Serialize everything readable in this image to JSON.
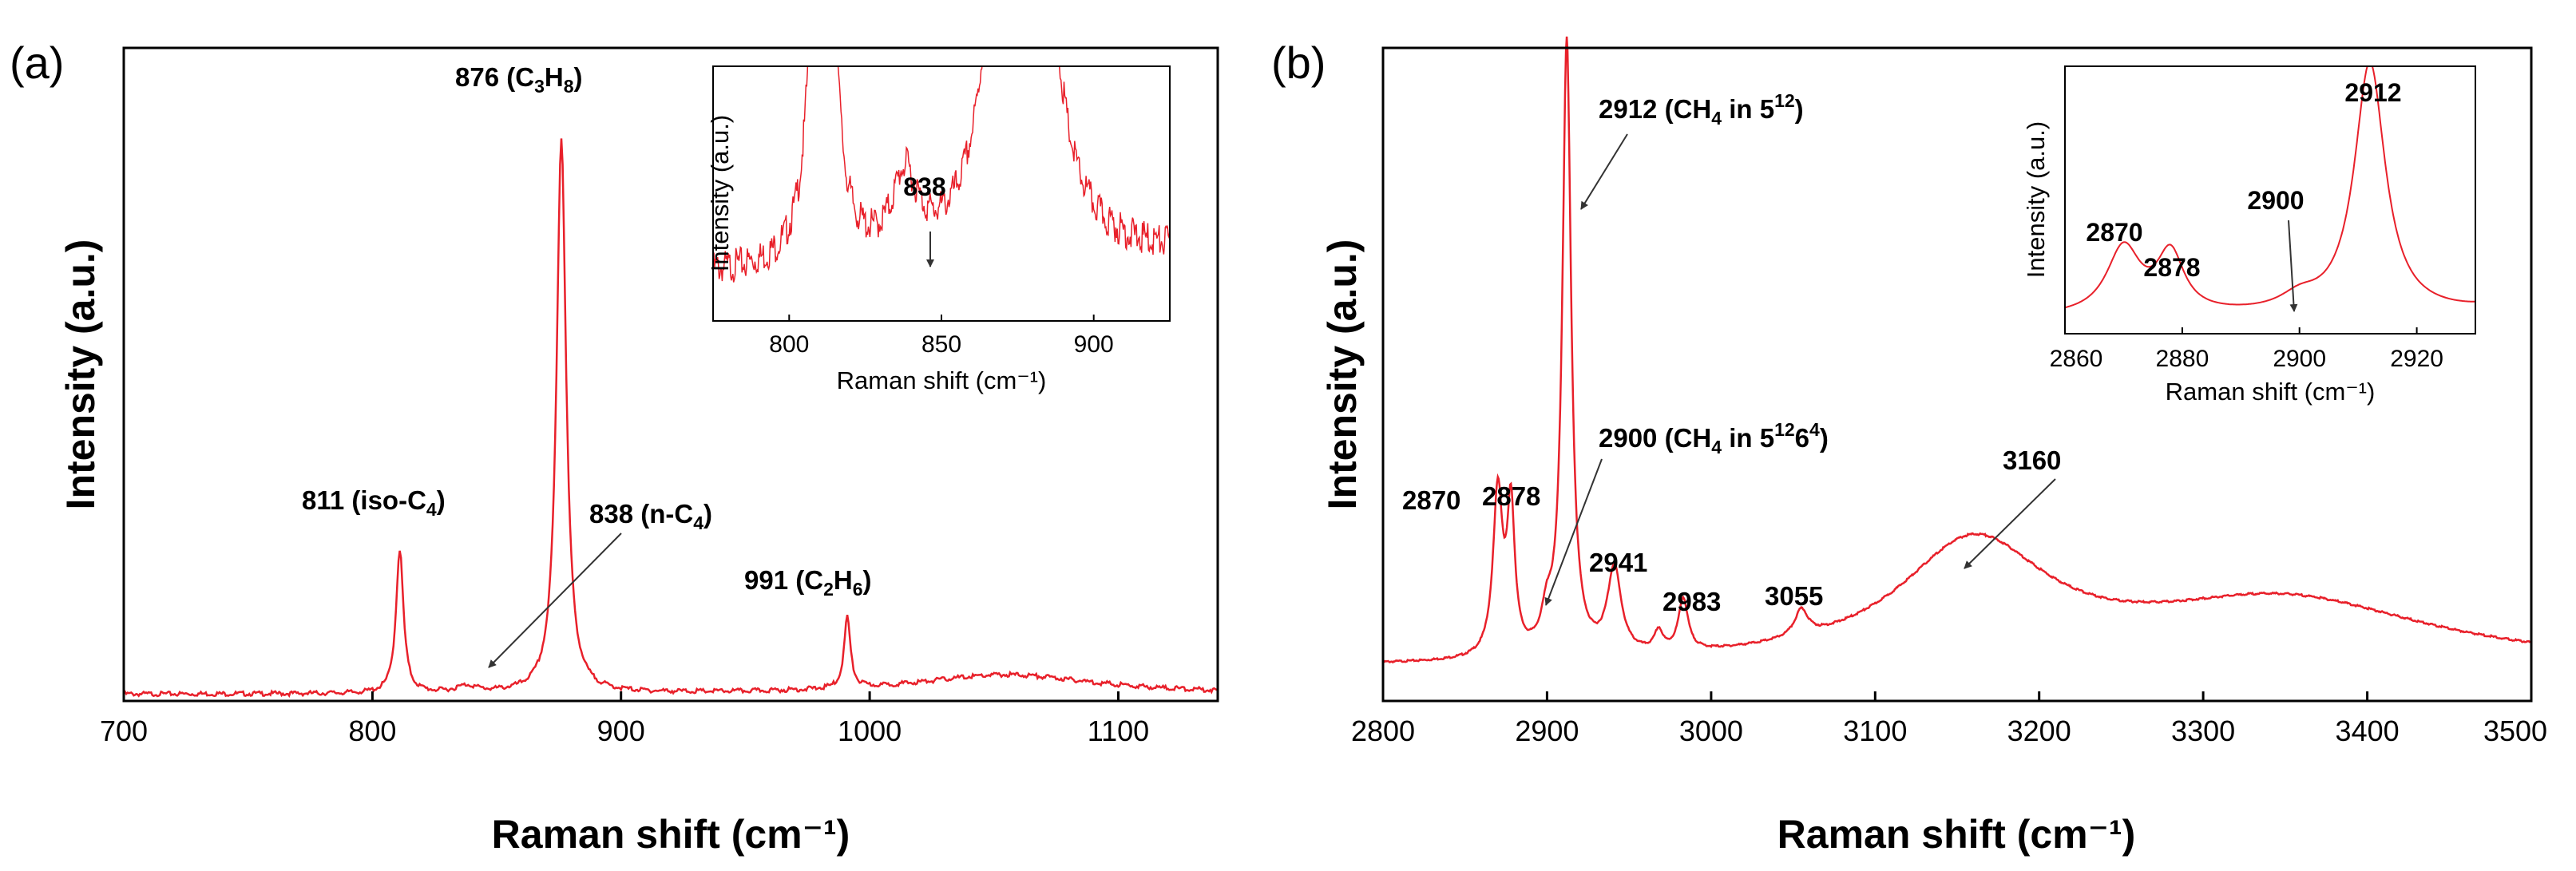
{
  "colors": {
    "spectrum": "#e8202a",
    "axis": "#000000",
    "arrow": "#333333"
  },
  "chart_data": [
    {
      "id": "a",
      "type": "line",
      "panel_label": "(a)",
      "xlabel": "Raman shift (cm⁻¹)",
      "ylabel": "Intensity (a.u.)",
      "xlim": [
        700,
        1140
      ],
      "ylim": [
        0,
        100
      ],
      "xticks": [
        700,
        800,
        900,
        1000,
        1100
      ],
      "baseline": 1,
      "peaks": [
        {
          "x": 811,
          "h": 22,
          "w": 1.8
        },
        {
          "x": 838,
          "h": 1.0,
          "w": 5
        },
        {
          "x": 876,
          "h": 85,
          "w": 2.3
        },
        {
          "x": 991,
          "h": 11,
          "w": 1.5
        },
        {
          "x": 1055,
          "h": 3,
          "w": 45
        }
      ],
      "annotations": [
        {
          "text": "811 (iso-C₄)",
          "x": 811,
          "y": 22
        },
        {
          "text": "876 (C₃H₈)",
          "x": 876,
          "y": 85
        },
        {
          "text": "838 (n-C₄)",
          "x": 838,
          "y": 1
        },
        {
          "text": "991 (C₂H₆)",
          "x": 991,
          "y": 11
        }
      ],
      "inset": {
        "type": "line",
        "xlabel": "Raman shift (cm⁻¹)",
        "ylabel": "Intensity (a.u.)",
        "xlim": [
          775,
          925
        ],
        "ylim": [
          0,
          100
        ],
        "xticks": [
          800,
          850,
          900
        ],
        "annotations": [
          {
            "text": "838",
            "x": 838,
            "y": 20
          }
        ]
      }
    },
    {
      "id": "b",
      "type": "line",
      "panel_label": "(b)",
      "xlabel": "Raman shift (cm⁻¹)",
      "ylabel": "Intensity (a.u.)",
      "xlim": [
        2800,
        3500
      ],
      "ylim": [
        0,
        100
      ],
      "xticks": [
        2800,
        2900,
        3000,
        3100,
        3200,
        3300,
        3400,
        3500
      ],
      "baseline": 5,
      "peaks": [
        {
          "x": 2870,
          "h": 25,
          "w": 3.5
        },
        {
          "x": 2878,
          "h": 22,
          "w": 2.8
        },
        {
          "x": 2900,
          "h": 5,
          "w": 4
        },
        {
          "x": 2912,
          "h": 94,
          "w": 3.2
        },
        {
          "x": 2941,
          "h": 13,
          "w": 5
        },
        {
          "x": 2968,
          "h": 3,
          "w": 3
        },
        {
          "x": 2983,
          "h": 8,
          "w": 3.5
        },
        {
          "x": 3055,
          "h": 4,
          "w": 5
        },
        {
          "x": 3160,
          "h": 18,
          "w": 55
        },
        {
          "x": 3350,
          "h": 10,
          "w": 110
        }
      ],
      "annotations": [
        {
          "text": "2870",
          "x": 2870,
          "y": 25
        },
        {
          "text": "2878",
          "x": 2878,
          "y": 22
        },
        {
          "text": "2912 (CH₄ in 5¹²)",
          "x": 2912,
          "y": 94
        },
        {
          "text": "2900 (CH₄ in 5¹²6⁴)",
          "x": 2900,
          "y": 15
        },
        {
          "text": "2941",
          "x": 2941,
          "y": 14
        },
        {
          "text": "2983",
          "x": 2983,
          "y": 9
        },
        {
          "text": "3055",
          "x": 3055,
          "y": 5
        },
        {
          "text": "3160",
          "x": 3160,
          "y": 20
        }
      ],
      "inset": {
        "type": "line",
        "xlabel": "Raman shift (cm⁻¹)",
        "ylabel": "Intensity (a.u.)",
        "xlim": [
          2860,
          2930
        ],
        "ylim": [
          0,
          100
        ],
        "xticks": [
          2860,
          2880,
          2900,
          2920
        ],
        "annotations": [
          {
            "text": "2870",
            "x": 2870,
            "y": 20
          },
          {
            "text": "2878",
            "x": 2878,
            "y": 20
          },
          {
            "text": "2900",
            "x": 2900,
            "y": 10
          },
          {
            "text": "2912",
            "x": 2912,
            "y": 90
          }
        ]
      }
    }
  ]
}
